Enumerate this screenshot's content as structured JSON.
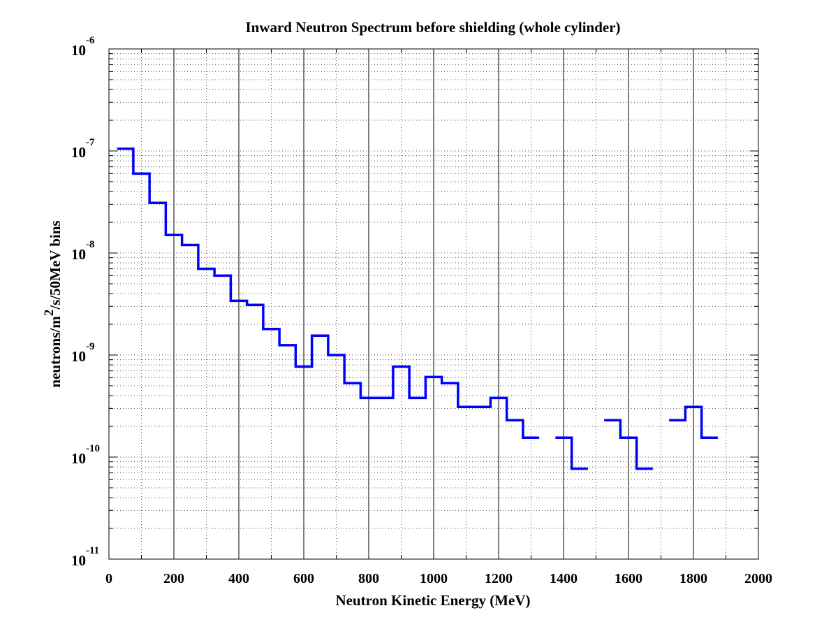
{
  "chart_data": {
    "type": "line",
    "title": "Inward Neutron Spectrum before shielding (whole cylinder)",
    "xlabel": "Neutron Kinetic Energy (MeV)",
    "ylabel": {
      "before": "neutrons/m",
      "sup": "2",
      "after": "/s/50MeV bins"
    },
    "xlim": [
      0,
      2000
    ],
    "ylim": [
      1e-11,
      1e-06
    ],
    "yscale": "log",
    "grid": true,
    "xticks": [
      "0",
      "200",
      "400",
      "600",
      "800",
      "1000",
      "1200",
      "1400",
      "1600",
      "1800",
      "2000"
    ],
    "yticks": [
      {
        "base": "10",
        "exp": "-6"
      },
      {
        "base": "10",
        "exp": "-7"
      },
      {
        "base": "10",
        "exp": "-8"
      },
      {
        "base": "10",
        "exp": "-9"
      },
      {
        "base": "10",
        "exp": "-10"
      },
      {
        "base": "10",
        "exp": "-11"
      }
    ],
    "series": [
      {
        "color": "#0000ff",
        "bin_width": 50,
        "bin_centers": [
          50,
          100,
          150,
          200,
          250,
          300,
          350,
          400,
          450,
          500,
          550,
          600,
          650,
          700,
          750,
          800,
          850,
          900,
          950,
          1000,
          1050,
          1100,
          1150,
          1200,
          1250,
          1300,
          1350,
          1400,
          1450,
          1500,
          1550,
          1600,
          1650,
          1700,
          1750,
          1800,
          1850
        ],
        "values": [
          1.05e-07,
          6e-08,
          3.1e-08,
          1.5e-08,
          1.2e-08,
          7e-09,
          6e-09,
          3.4e-09,
          3.1e-09,
          1.8e-09,
          1.25e-09,
          7.7e-10,
          1.55e-09,
          1e-09,
          5.3e-10,
          3.8e-10,
          3.8e-10,
          7.7e-10,
          3.8e-10,
          6.1e-10,
          5.3e-10,
          3.1e-10,
          3.1e-10,
          3.8e-10,
          2.3e-10,
          1.55e-10,
          null,
          1.55e-10,
          7.7e-11,
          null,
          2.3e-10,
          1.55e-10,
          7.7e-11,
          null,
          2.3e-10,
          3.1e-10,
          1.55e-10
        ]
      }
    ]
  }
}
